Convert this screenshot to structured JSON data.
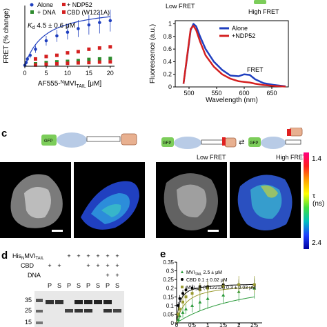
{
  "panel_a": {
    "legend": {
      "alone": "Alone",
      "ndp52": "+ NDP52",
      "dna": "+ DNA",
      "cbd": "CBD (W1221A)"
    },
    "kd_text": "K",
    "kd_sub": "d",
    "kd_value": " 4.5 ± 0.6 μM",
    "ylabel": "FRET (% change)",
    "xlabel_prefix": "AF555-",
    "xlabel_n": "N",
    "xlabel_mvi": "MVI",
    "xlabel_sub": "TAIL",
    "xlabel_unit": " [μM]",
    "xticks": [
      "0",
      "5",
      "10",
      "15",
      "20"
    ]
  },
  "panel_b": {
    "low_fret": "Low FRET",
    "high_fret": "High FRET",
    "legend_alone": "Alone",
    "legend_ndp52": "+NDP52",
    "fret_annotation": "FRET",
    "ylabel": "Fluorescence (a.u.)",
    "xlabel": "Wavelength (nm)",
    "yticks": [
      "0",
      "0.2",
      "0.4",
      "0.6",
      "0.8",
      "1"
    ],
    "xticks": [
      "500",
      "550",
      "600",
      "650"
    ]
  },
  "panel_c": {
    "letter": "c",
    "gfp": "GFP",
    "low_fret": "Low FRET",
    "high_fret": "High FRET",
    "scale_top": "1.4",
    "scale_bottom": "2.4",
    "scale_label": "τ (ns)"
  },
  "panel_d": {
    "letter": "d",
    "row_his": "His",
    "row_his_sub": "N",
    "row_his_mvi": "MVI",
    "row_his_mvi_sub": "TAIL",
    "row_cbd": "CBD",
    "row_dna": "DNA",
    "row_his_signs": [
      "+",
      "+",
      "+",
      "+",
      "+",
      "+"
    ],
    "row_cbd_signs": [
      "+",
      "+",
      "+",
      "+",
      "+",
      "+"
    ],
    "row_dna_signs": [
      "+",
      "+"
    ],
    "lanes": [
      "P",
      "S",
      "P",
      "S",
      "P",
      "S",
      "P",
      "S"
    ],
    "markers": [
      "35",
      "25",
      "15"
    ],
    "cbd_cartoon": "CBD"
  },
  "panel_e": {
    "letter": "e",
    "legend_mvi": "MVI",
    "legend_mvi_sub": "TAIL",
    "legend_mvi_value": " 2.5 ± μM",
    "legend_cbd": "CBD 0.1 ± 0.02 μM",
    "legend_w_sub": "TAIL",
    "legend_w_value": " (W1221A) 0.3 ± 0.03 μM",
    "yticks": [
      "0",
      "0.05",
      "0.1",
      "0.15",
      "0.2",
      "0.25",
      "0.3",
      "0.35"
    ],
    "xticks": [
      "0",
      "0.5",
      "1",
      "1.5",
      "2",
      "2.5"
    ]
  },
  "colors": {
    "alone": "#1f3fbf",
    "ndp52": "#d42020",
    "dna": "#2e8b2e",
    "green_tri": "#2a9a3a",
    "olive": "#9a9a30",
    "gfp": "#7ccd5a",
    "body": "#b8cbe6",
    "tail": "#e8b090",
    "red_dye": "#e02020"
  },
  "chart_data": [
    {
      "type": "scatter",
      "xlabel": "AF555-NMVI TAIL [μM]",
      "ylabel": "FRET (% change)",
      "xlim": [
        0,
        21
      ],
      "ylim": [
        0,
        25
      ],
      "series": [
        {
          "name": "Alone",
          "x": [
            0,
            0.3,
            0.6,
            1.25,
            2.5,
            5,
            7.5,
            10,
            12.5,
            15,
            17.5,
            20
          ],
          "y": [
            0.4,
            1.5,
            3,
            4.5,
            7,
            10.5,
            12.5,
            14,
            15.5,
            17,
            18,
            18.8
          ],
          "err": [
            0.5,
            0.8,
            1,
            1.2,
            1.5,
            2,
            2.5,
            3,
            3.5,
            4,
            4.5,
            4.5
          ]
        },
        {
          "name": "+ NDP52",
          "x": [
            2.5,
            5,
            7.5,
            10,
            12.5,
            15,
            17.5,
            20
          ],
          "y": [
            3,
            4,
            4.5,
            5.5,
            6,
            7,
            7.5,
            8
          ]
        },
        {
          "name": "+ DNA",
          "x": [
            2.5,
            5,
            7.5,
            10,
            12.5,
            15,
            17.5,
            20
          ],
          "y": [
            1,
            1.5,
            1.8,
            2,
            2.3,
            2.8,
            3,
            3.2
          ]
        },
        {
          "name": "CBD (W1221A)",
          "x": [
            2.5,
            5,
            7.5,
            10,
            12.5,
            15,
            17.5,
            20
          ],
          "y": [
            0.5,
            0.8,
            1,
            1.2,
            1.4,
            1.5,
            1.7,
            1.8
          ]
        }
      ]
    },
    {
      "type": "line",
      "xlabel": "Wavelength (nm)",
      "ylabel": "Fluorescence (a.u.)",
      "xlim": [
        475,
        680
      ],
      "ylim": [
        0,
        1.05
      ],
      "series": [
        {
          "name": "Alone",
          "x": [
            490,
            497,
            503,
            508,
            513,
            520,
            530,
            545,
            560,
            575,
            590,
            600,
            610,
            620,
            635,
            655,
            675
          ],
          "y": [
            0.05,
            0.5,
            0.9,
            1.0,
            0.96,
            0.8,
            0.6,
            0.4,
            0.27,
            0.18,
            0.17,
            0.2,
            0.19,
            0.12,
            0.06,
            0.03,
            0.01
          ]
        },
        {
          "name": "+NDP52",
          "x": [
            490,
            497,
            503,
            508,
            513,
            520,
            530,
            545,
            560,
            575,
            590,
            600,
            610,
            620,
            635,
            655,
            675
          ],
          "y": [
            0.05,
            0.52,
            0.92,
            0.97,
            0.9,
            0.72,
            0.5,
            0.32,
            0.2,
            0.13,
            0.09,
            0.08,
            0.07,
            0.05,
            0.03,
            0.015,
            0.005
          ]
        }
      ]
    },
    {
      "type": "scatter",
      "xlim": [
        0,
        2.75
      ],
      "ylim": [
        0,
        0.35
      ],
      "series": [
        {
          "name": "MVI TAIL 2.5 ± μM",
          "x": [
            0.05,
            0.1,
            0.2,
            0.3,
            0.5,
            0.75,
            1.0,
            1.5,
            2.0,
            2.5
          ],
          "y": [
            0.02,
            0.04,
            0.06,
            0.08,
            0.1,
            0.12,
            0.14,
            0.16,
            0.18,
            0.2
          ],
          "err": [
            0.02,
            0.02,
            0.03,
            0.03,
            0.04,
            0.05,
            0.06,
            0.05,
            0.06,
            0.06
          ]
        },
        {
          "name": "CBD 0.1 ± 0.02 μM",
          "x": [
            0.05,
            0.1,
            0.2,
            0.3,
            0.5,
            0.75,
            1.0,
            1.5,
            2.0,
            2.5
          ],
          "y": [
            0.1,
            0.14,
            0.17,
            0.19,
            0.2,
            0.21,
            0.21,
            0.22,
            0.22,
            0.22
          ],
          "err": [
            0.02,
            0.02,
            0.02,
            0.02,
            0.02,
            0.02,
            0.03,
            0.03,
            0.03,
            0.03
          ]
        },
        {
          "name": "MVI TAIL (W1221A) 0.3 ± 0.03 μM",
          "x": [
            0.05,
            0.1,
            0.2,
            0.3,
            0.5,
            0.75,
            1.0,
            1.5,
            2.0,
            2.5
          ],
          "y": [
            0.05,
            0.08,
            0.12,
            0.15,
            0.17,
            0.19,
            0.2,
            0.21,
            0.22,
            0.22
          ],
          "err": [
            0.02,
            0.02,
            0.03,
            0.03,
            0.03,
            0.04,
            0.04,
            0.04,
            0.05,
            0.05
          ]
        }
      ]
    }
  ]
}
